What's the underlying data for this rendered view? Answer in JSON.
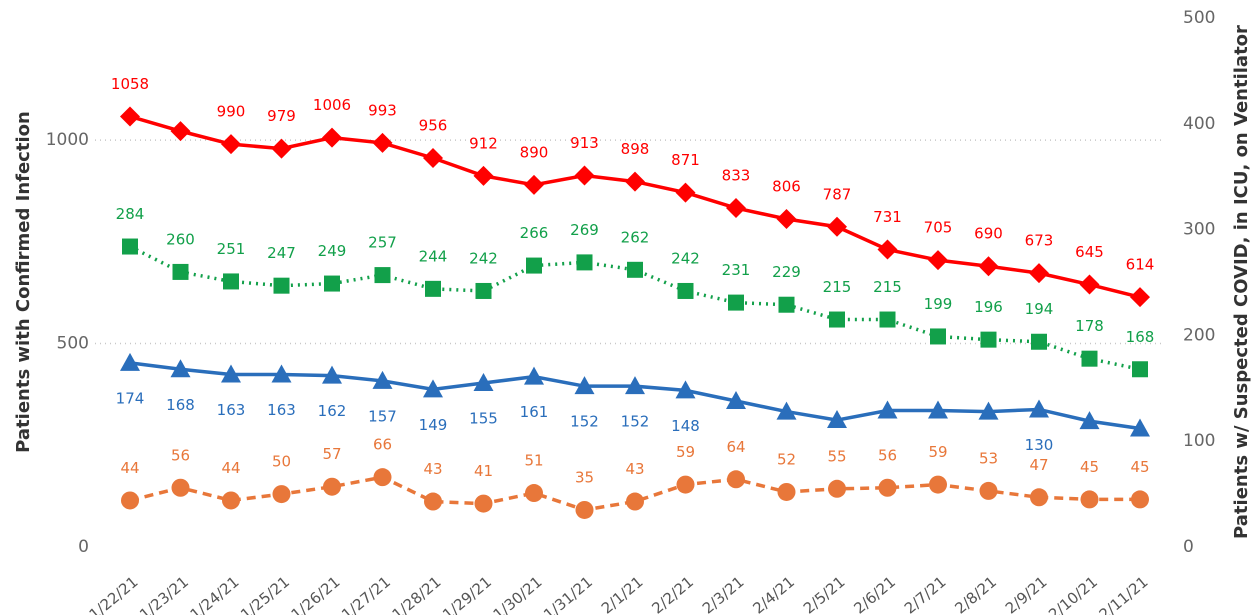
{
  "chart_data": {
    "type": "line",
    "y_label": "Patients with Confirmed Infection",
    "y2_label": "Patients w/ Suspected COVID, in ICU, on Ventilator",
    "categories": [
      "1/22/21",
      "1/23/21",
      "1/24/21",
      "1/25/21",
      "1/26/21",
      "1/27/21",
      "1/28/21",
      "1/29/21",
      "1/30/21",
      "1/31/21",
      "2/1/21",
      "2/2/21",
      "2/3/21",
      "2/4/21",
      "2/5/21",
      "2/6/21",
      "2/7/21",
      "2/8/21",
      "2/9/21",
      "2/10/21",
      "2/11/21"
    ],
    "series": [
      {
        "color": "#ff0000",
        "marker": "diamond",
        "dash": "solid",
        "values": [
          1058,
          1022,
          990,
          979,
          1006,
          993,
          956,
          912,
          890,
          913,
          898,
          871,
          833,
          806,
          787,
          731,
          705,
          690,
          673,
          645,
          614
        ],
        "value_labels": [
          "1058",
          null,
          "990",
          "979",
          "1006",
          "993",
          "956",
          "912",
          "890",
          "913",
          "898",
          "871",
          "833",
          "806",
          "787",
          "731",
          "705",
          "690",
          "673",
          "645",
          "614"
        ]
      },
      {
        "color": "#12a04a",
        "marker": "square",
        "dash": "dotted",
        "axis": "y2",
        "values": [
          284,
          260,
          251,
          247,
          249,
          257,
          244,
          242,
          266,
          269,
          262,
          242,
          231,
          229,
          215,
          215,
          199,
          196,
          194,
          178,
          168
        ]
      },
      {
        "color": "#2a6ebb",
        "marker": "triangle",
        "dash": "solid",
        "axis": "y2",
        "values": [
          174,
          168,
          163,
          163,
          162,
          157,
          149,
          155,
          161,
          152,
          152,
          148,
          138,
          128,
          120,
          129,
          129,
          128,
          130,
          119,
          112
        ],
        "value_labels": [
          "174",
          "168",
          "163",
          "163",
          "162",
          "157",
          "149",
          "155",
          "161",
          "152",
          "152",
          "148",
          null,
          null,
          null,
          null,
          null,
          null,
          "130",
          null,
          null
        ]
      },
      {
        "color": "#e8773a",
        "marker": "circle",
        "dash": "dashed",
        "axis": "y2",
        "values": [
          44,
          56,
          44,
          50,
          57,
          66,
          43,
          41,
          51,
          35,
          43,
          59,
          64,
          52,
          55,
          56,
          59,
          53,
          47,
          45,
          45
        ]
      }
    ],
    "ylim": [
      0,
      1300
    ],
    "yticks": [
      0,
      500,
      1000
    ],
    "y2lim": [
      0,
      500
    ],
    "y2ticks": [
      0,
      100,
      200,
      300,
      400,
      500
    ],
    "grid": true
  }
}
